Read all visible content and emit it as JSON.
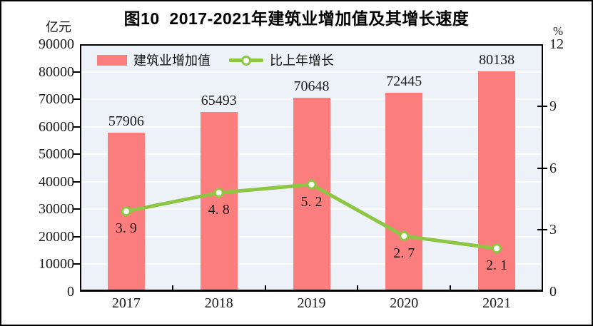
{
  "title": "图10  2017-2021年建筑业增加值及其增长速度",
  "left_axis": {
    "unit": "亿元",
    "tick_labels": [
      "90000",
      "80000",
      "70000",
      "60000",
      "50000",
      "40000",
      "30000",
      "20000",
      "10000",
      "0"
    ]
  },
  "right_axis": {
    "unit": "%",
    "tick_labels": [
      "12",
      "9",
      "6",
      "3",
      "0"
    ]
  },
  "legend": {
    "items": [
      {
        "label": "建筑业增加值",
        "type": "bar"
      },
      {
        "label": "比上年增长",
        "type": "line"
      }
    ]
  },
  "colors": {
    "bar": "#FC7D7D",
    "line": "#8CC642",
    "marker_fill": "#FFFFFF",
    "plot_background": "#EDF2F8",
    "grid": "#FFFFFF",
    "axis": "#000000",
    "text": "#1A1A1A"
  },
  "chart_data": {
    "type": "bar+line",
    "title": "图10  2017-2021年建筑业增加值及其增长速度",
    "categories": [
      "2017",
      "2018",
      "2019",
      "2020",
      "2021"
    ],
    "series": [
      {
        "name": "建筑业增加值",
        "type": "bar",
        "axis": "left",
        "unit": "亿元",
        "color": "#FC7D7D",
        "values": [
          57906,
          65493,
          70648,
          72445,
          80138
        ],
        "labels": [
          "57906",
          "65493",
          "70648",
          "72445",
          "80138"
        ]
      },
      {
        "name": "比上年增长",
        "type": "line",
        "axis": "right",
        "unit": "%",
        "color": "#8CC642",
        "marker": "circle-white-fill",
        "values": [
          3.9,
          4.8,
          5.2,
          2.7,
          2.1
        ],
        "labels": [
          "3. 9",
          "4. 8",
          "5. 2",
          "2. 7",
          "2. 1"
        ]
      }
    ],
    "left_ylim": [
      0,
      90000
    ],
    "left_step": 10000,
    "right_ylim": [
      0,
      12
    ],
    "right_step": 3,
    "grid": true,
    "legend_position": "top-left-inside"
  }
}
